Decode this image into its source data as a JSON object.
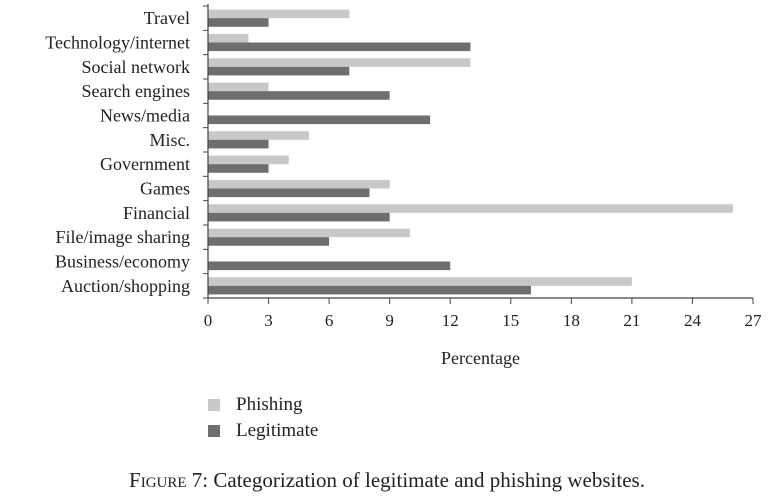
{
  "chart_data": {
    "type": "bar",
    "orientation": "horizontal",
    "categories": [
      "Travel",
      "Technology/internet",
      "Social network",
      "Search engines",
      "News/media",
      "Misc.",
      "Government",
      "Games",
      "Financial",
      "File/image sharing",
      "Business/economy",
      "Auction/shopping"
    ],
    "series": [
      {
        "name": "Phishing",
        "color": "#c8c8c8",
        "values": [
          7,
          2,
          13,
          3,
          0,
          5,
          4,
          9,
          26,
          10,
          0,
          21
        ]
      },
      {
        "name": "Legitimate",
        "color": "#6e6e6e",
        "values": [
          3,
          13,
          7,
          9,
          11,
          3,
          3,
          8,
          9,
          6,
          12,
          16
        ]
      }
    ],
    "xlabel": "Percentage",
    "xlim": [
      0,
      27
    ],
    "xticks": [
      0,
      3,
      6,
      9,
      12,
      15,
      18,
      21,
      24,
      27
    ],
    "grid": false,
    "legend_position": "bottom-left"
  },
  "caption": {
    "prefix": "Figure 7",
    "text": ": Categorization of legitimate and phishing websites."
  }
}
